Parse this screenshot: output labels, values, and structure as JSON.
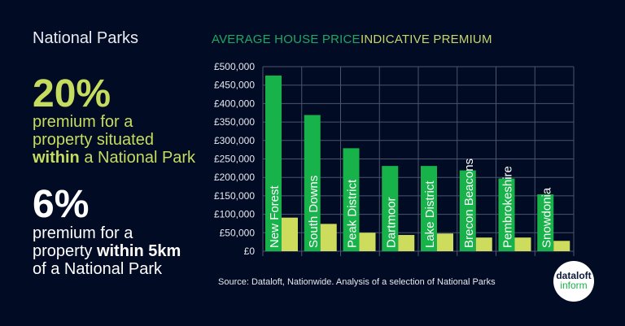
{
  "title": "National Parks",
  "stat1": {
    "value": "20%",
    "line1": "premium for a",
    "line2": "property situated",
    "line3_bold": "within",
    "line3_rest": " a National Park"
  },
  "stat2": {
    "value": "6%",
    "line1": "premium for a",
    "line2_pre": "property ",
    "line2_bold": "within 5km",
    "line3": "of a National Park"
  },
  "source": "Source: Dataloft, Nationwide. Analysis of a selection of National Parks",
  "logo": {
    "top": "dataloft",
    "bottom": "inform"
  },
  "colors": {
    "background": "#020b24",
    "green": "#18b24b",
    "yellow": "#cddc5c",
    "accent_text": "#c6dc5e",
    "legend_green": "#1fa863",
    "legend_yellow": "#c5d66a"
  },
  "chart_data": {
    "type": "bar",
    "categories": [
      "New Forest",
      "South Downs",
      "Peak District",
      "Dartmoor",
      "Lake District",
      "Brecon Beacons",
      "Pembrokeshire",
      "Snowdonia"
    ],
    "series": [
      {
        "name": "AVERAGE HOUSE PRICE",
        "values": [
          476000,
          369000,
          279000,
          231000,
          231000,
          219000,
          197000,
          154000
        ]
      },
      {
        "name": "INDICATIVE PREMIUM",
        "values": [
          91000,
          74000,
          50000,
          44000,
          48000,
          37000,
          37000,
          28000
        ]
      }
    ],
    "ylim": [
      0,
      500000
    ],
    "yticks": [
      "£0",
      "£50,000",
      "£100,000",
      "£150,000",
      "£200,000",
      "£250,000",
      "£300,000",
      "£350,000",
      "£400,000",
      "£450,000",
      "£500,000"
    ],
    "grid": true,
    "legend": "top"
  }
}
